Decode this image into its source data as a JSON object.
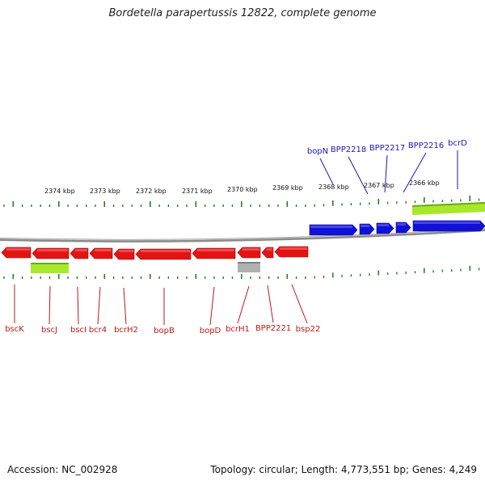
{
  "title": "Bordetella parapertussis 12822, complete genome",
  "footer": {
    "accession": "Accession: NC_002928",
    "summary": "Topology: circular; Length: 4,773,551 bp; Genes: 4,249"
  },
  "colors": {
    "forward_gene": "#1010d8",
    "reverse_gene": "#e41414",
    "feature_green": "#a8e82a",
    "feature_gray": "#b0b0b0",
    "tick": "#2a7a2a",
    "blue_label": "#1a1ab0",
    "red_label": "#c41616"
  },
  "ruler": {
    "kbp_labels": [
      "2374 kbp",
      "2373 kbp",
      "2372 kbp",
      "2371 kbp",
      "2370 kbp",
      "2369 kbp",
      "2368 kbp",
      "2367 kbp",
      "2366 kbp"
    ]
  },
  "genes": {
    "forward_labels": [
      "bopN",
      "BPP2218",
      "BPP2217",
      "BPP2216",
      "bcrD"
    ],
    "reverse_labels": [
      "bscK",
      "bscJ",
      "bscI",
      "bcr4",
      "bcrH2",
      "bopB",
      "bopD",
      "bcrH1",
      "BPP2221",
      "bsp22"
    ]
  }
}
